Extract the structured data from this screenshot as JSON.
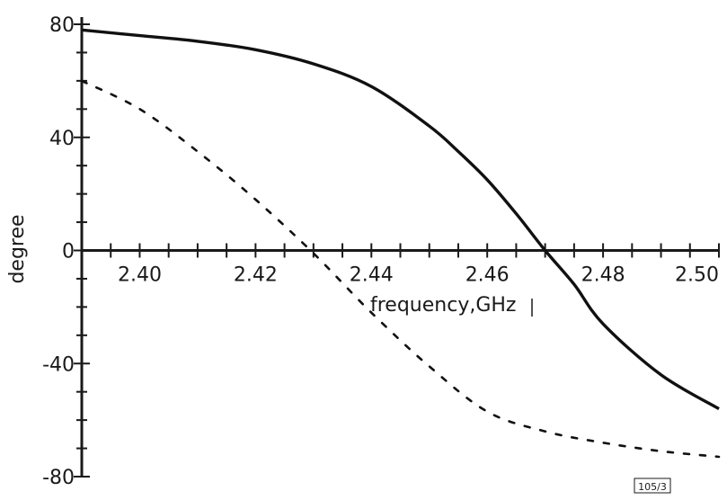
{
  "chart_data": {
    "type": "line",
    "xlabel": "frequency,GHz",
    "ylabel": "degree",
    "xlim": [
      2.39,
      2.5
    ],
    "ylim": [
      -80,
      80
    ],
    "x_ticks": [
      "2.40",
      "2.42",
      "2.44",
      "2.46",
      "2.48",
      "2.50"
    ],
    "y_ticks": [
      "80",
      "40",
      "0",
      "-40",
      "-80"
    ],
    "figure_tag": "105/3",
    "grid": false,
    "series": [
      {
        "style": "solid",
        "x": [
          2.39,
          2.4,
          2.41,
          2.42,
          2.43,
          2.44,
          2.45,
          2.455,
          2.46,
          2.465,
          2.47,
          2.475,
          2.48,
          2.49,
          2.5
        ],
        "y": [
          78,
          76,
          74,
          71,
          66,
          58,
          44,
          35,
          25,
          13,
          0,
          -12,
          -26,
          -44,
          -56
        ]
      },
      {
        "style": "dashed",
        "x": [
          2.39,
          2.4,
          2.41,
          2.42,
          2.43,
          2.44,
          2.45,
          2.46,
          2.47,
          2.48,
          2.49,
          2.5
        ],
        "y": [
          60,
          50,
          35,
          18,
          -1,
          -22,
          -41,
          -57,
          -64,
          -68,
          -71,
          -73
        ]
      }
    ]
  }
}
